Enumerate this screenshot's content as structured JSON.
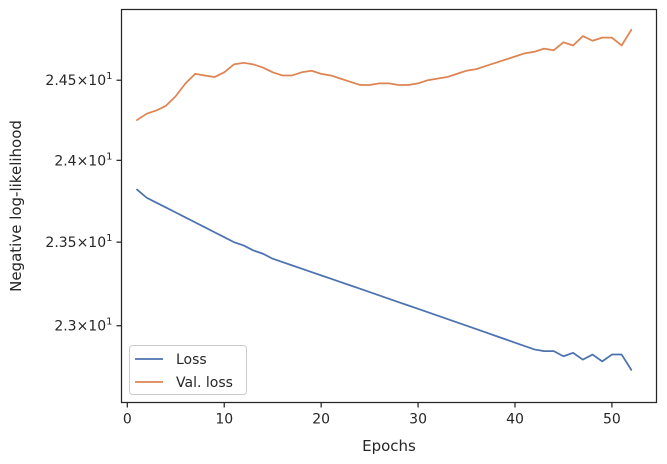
{
  "chart_data": {
    "type": "line",
    "title": "",
    "xlabel": "Epochs",
    "ylabel": "Negative log-likelihood",
    "xlim": [
      -0.6,
      54.6
    ],
    "ylim": [
      22.55,
      24.95
    ],
    "yscale": "log",
    "grid": false,
    "legend_position": "lower-left",
    "x_ticks": [
      0,
      10,
      20,
      30,
      40,
      50
    ],
    "x_tick_labels": [
      "0",
      "10",
      "20",
      "30",
      "40",
      "50"
    ],
    "y_ticks": [
      23.0,
      23.5,
      24.0,
      24.5
    ],
    "y_tick_labels": [
      {
        "base": "2.3",
        "exp": "1"
      },
      {
        "base": "2.35",
        "exp": "1"
      },
      {
        "base": "2.4",
        "exp": "1"
      },
      {
        "base": "2.45",
        "exp": "1"
      }
    ],
    "x": [
      1,
      2,
      3,
      4,
      5,
      6,
      7,
      8,
      9,
      10,
      11,
      12,
      13,
      14,
      15,
      16,
      17,
      18,
      19,
      20,
      21,
      22,
      23,
      24,
      25,
      26,
      27,
      28,
      29,
      30,
      31,
      32,
      33,
      34,
      35,
      36,
      37,
      38,
      39,
      40,
      41,
      42,
      43,
      44,
      45,
      46,
      47,
      48,
      49,
      50,
      51,
      52
    ],
    "series": [
      {
        "name": "Loss",
        "color": "#4c72b0",
        "values": [
          23.82,
          23.77,
          23.74,
          23.71,
          23.68,
          23.65,
          23.62,
          23.59,
          23.56,
          23.53,
          23.5,
          23.48,
          23.45,
          23.43,
          23.4,
          23.38,
          23.36,
          23.34,
          23.32,
          23.3,
          23.28,
          23.26,
          23.24,
          23.22,
          23.2,
          23.18,
          23.16,
          23.14,
          23.12,
          23.1,
          23.08,
          23.06,
          23.04,
          23.02,
          23.0,
          22.98,
          22.96,
          22.94,
          22.92,
          22.9,
          22.88,
          22.86,
          22.85,
          22.85,
          22.82,
          22.84,
          22.8,
          22.83,
          22.79,
          22.83,
          22.83,
          22.74
        ]
      },
      {
        "name": "Val. loss",
        "color": "#dd8452",
        "values": [
          24.25,
          24.29,
          24.31,
          24.34,
          24.4,
          24.48,
          24.54,
          24.53,
          24.52,
          24.55,
          24.6,
          24.61,
          24.6,
          24.58,
          24.55,
          24.53,
          24.53,
          24.55,
          24.56,
          24.54,
          24.53,
          24.51,
          24.49,
          24.47,
          24.47,
          24.48,
          24.48,
          24.47,
          24.47,
          24.48,
          24.5,
          24.51,
          24.52,
          24.54,
          24.56,
          24.57,
          24.59,
          24.61,
          24.63,
          24.65,
          24.67,
          24.68,
          24.7,
          24.69,
          24.74,
          24.72,
          24.78,
          24.75,
          24.77,
          24.77,
          24.72,
          24.82
        ]
      }
    ]
  }
}
